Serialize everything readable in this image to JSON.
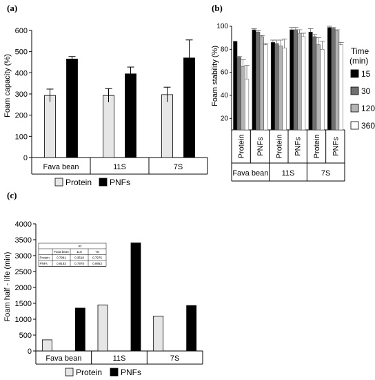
{
  "panels": {
    "a": "(a)",
    "b": "(b)",
    "c": "(c)"
  },
  "colors": {
    "protein": "#e6e6e6",
    "pnfs": "#000000",
    "t15": "#000000",
    "t30": "#707070",
    "t120": "#b4b4b4",
    "t360": "#ffffff"
  },
  "chart_data": [
    {
      "type": "bar",
      "panel": "(a)",
      "ylabel": "Foam capacity (%)",
      "ylim": [
        0,
        600
      ],
      "yticks": [
        "0",
        "100",
        "200",
        "300",
        "400",
        "500",
        "600"
      ],
      "categories": [
        "Fava bean",
        "11S",
        "7S"
      ],
      "series": [
        {
          "name": "Protein",
          "values": [
            293,
            293,
            297
          ],
          "errors": [
            30,
            32,
            35
          ]
        },
        {
          "name": "PNFs",
          "values": [
            465,
            395,
            470
          ],
          "errors": [
            12,
            32,
            85
          ]
        }
      ],
      "legend": [
        "Protein",
        "PNFs"
      ],
      "legend_position": "bottom"
    },
    {
      "type": "bar",
      "panel": "(b)",
      "ylabel": "Foam stability (%)",
      "ylim": [
        10,
        100
      ],
      "yticks": [
        "20",
        "40",
        "60",
        "80",
        "100"
      ],
      "legend_title": "Time (min)",
      "legend": [
        "15",
        "30",
        "120",
        "360"
      ],
      "legend_position": "right",
      "groups": [
        "Fava bean",
        "11S",
        "7S"
      ],
      "subcategories": [
        "Protein",
        "PNFs"
      ],
      "series": [
        {
          "name": "15",
          "values": [
            87,
            97,
            86,
            97,
            95,
            99
          ],
          "errors": [
            0,
            1,
            2,
            2,
            3,
            1
          ]
        },
        {
          "name": "30",
          "values": [
            73,
            95,
            85,
            97,
            91,
            98
          ],
          "errors": [
            1,
            1,
            3,
            2,
            2,
            1
          ]
        },
        {
          "name": "120",
          "values": [
            65,
            91,
            83,
            94,
            84,
            96
          ],
          "errors": [
            6,
            1,
            5,
            3,
            6,
            1
          ]
        },
        {
          "name": "360",
          "values": [
            54,
            84,
            81,
            91,
            80,
            84
          ],
          "errors": [
            12,
            1,
            8,
            3,
            7,
            2
          ]
        }
      ]
    },
    {
      "type": "bar",
      "panel": "(c)",
      "ylabel": "Foam half - life (min)",
      "ylim": [
        0,
        4000
      ],
      "yticks": [
        "0",
        "500",
        "1000",
        "1500",
        "2000",
        "2500",
        "3000",
        "3500",
        "4000"
      ],
      "categories": [
        "Fava bean",
        "11S",
        "7S"
      ],
      "series": [
        {
          "name": "Protein",
          "values": [
            350,
            1450,
            1100
          ]
        },
        {
          "name": "PNFs",
          "values": [
            1350,
            3400,
            1430
          ]
        }
      ],
      "legend": [
        "Protein",
        "PNFs"
      ],
      "legend_position": "bottom",
      "table": {
        "header": "R²",
        "columns": [
          "",
          "Fava bean",
          "11S",
          "7S"
        ],
        "rows": [
          [
            "Protein",
            "0.7981",
            "0.3518",
            "0.7976"
          ],
          [
            "PNFs",
            "0.9183",
            "0.7978",
            "0.9863"
          ]
        ]
      }
    }
  ]
}
